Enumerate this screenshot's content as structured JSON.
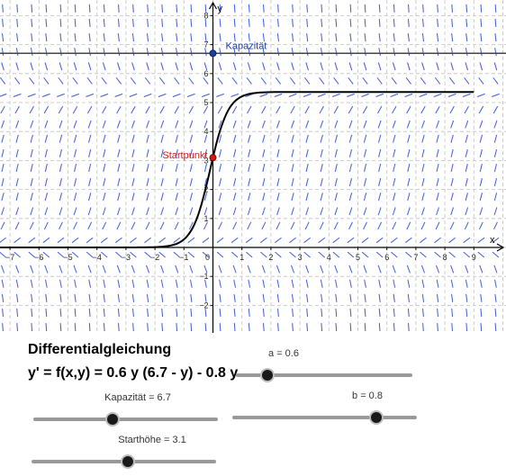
{
  "graph": {
    "x_ticks": [
      "-7",
      "-6",
      "-5",
      "-4",
      "-3",
      "-2",
      "-1",
      "0",
      "1",
      "2",
      "3",
      "4",
      "5",
      "6",
      "7",
      "8",
      "9"
    ],
    "y_ticks": [
      "-2",
      "-1",
      "1",
      "2",
      "3",
      "4",
      "5",
      "6",
      "7",
      "8"
    ],
    "x_axis_label": "x",
    "y_axis_label": "y",
    "kapazitaet_point_label": "Kapazität",
    "startpunkt_label": "Startpunkt",
    "colors": {
      "direction_field": "#3b5bdb",
      "kapazitaet": "#1f3fa0",
      "startpunkt": "#d11a1a",
      "curve": "#000000",
      "grid": "#bfbfbf"
    }
  },
  "panel": {
    "title": "Differentialgleichung",
    "equation": "y' = f(x,y) = 0.6 y (6.7 - y) - 0.8 y"
  },
  "sliders": {
    "a": {
      "label": "a = 0.6",
      "value": 0.6,
      "fraction": 0.18
    },
    "b": {
      "label": "b = 0.8",
      "value": 0.8,
      "fraction": 0.78
    },
    "kapazitaet": {
      "label": "Kapazität = 6.7",
      "value": 6.7,
      "fraction": 0.43
    },
    "starthoehe": {
      "label": "Starthöhe = 3.1",
      "value": 3.1,
      "fraction": 0.52
    }
  },
  "model": {
    "a": 0.6,
    "b": 0.8,
    "capacity": 6.7,
    "start_height": 3.1
  }
}
